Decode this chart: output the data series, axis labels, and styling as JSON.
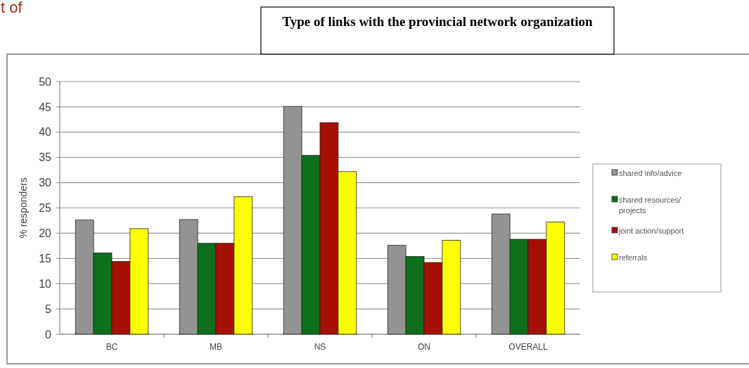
{
  "chart_data": {
    "type": "bar",
    "title": "Type of links with the provincial network organization",
    "ylabel": "% responders",
    "annotations": [
      "t of"
    ],
    "categories": [
      "BC",
      "MB",
      "NS",
      "ON",
      "OVERALL"
    ],
    "series": [
      {
        "name": "shared info/advice",
        "color": "#939393",
        "values": [
          22.6,
          22.7,
          45.1,
          17.6,
          23.8
        ]
      },
      {
        "name": "shared resources/ projects",
        "color": "#0d6e1c",
        "values": [
          16.1,
          18,
          35.4,
          15.4,
          18.8
        ]
      },
      {
        "name": "joint action/support",
        "color": "#a50f04",
        "values": [
          14.4,
          18,
          41.9,
          14.2,
          18.8
        ]
      },
      {
        "name": "referrals",
        "color": "#ffff00",
        "values": [
          20.9,
          27.2,
          32.2,
          18.6,
          22.2
        ]
      }
    ],
    "ylim": [
      0,
      50
    ],
    "yticks": [
      0,
      5,
      10,
      15,
      20,
      25,
      30,
      35,
      40,
      45,
      50
    ],
    "grid": "y",
    "legend": "right"
  }
}
